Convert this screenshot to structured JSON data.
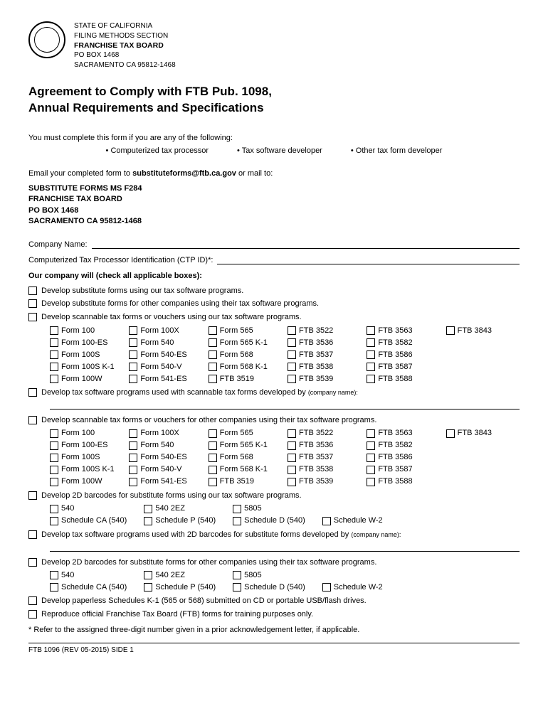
{
  "header": {
    "state": "STATE OF CALIFORNIA",
    "section": "FILING METHODS SECTION",
    "board": "FRANCHISE TAX BOARD",
    "pobox": "PO BOX 1468",
    "city": "SACRAMENTO  CA  95812-1468"
  },
  "title_l1": "Agreement to Comply with FTB Pub. 1098,",
  "title_l2": "Annual Requirements and Specifications",
  "intro": "You must complete this form if you are any of the following:",
  "bullet1": "Computerized tax processor",
  "bullet2": "Tax software developer",
  "bullet3": "Other tax form developer",
  "email_prefix": "Email your completed form to ",
  "email_addr": "substituteforms@ftb.ca.gov",
  "email_suffix": " or mail to:",
  "mailto": {
    "l1": "SUBSTITUTE FORMS  MS F284",
    "l2": "FRANCHISE TAX BOARD",
    "l3": "PO BOX 1468",
    "l4": "SACRAMENTO CA 95812-1468"
  },
  "field_company": "Company Name:",
  "field_ctp": "Computerized Tax Processor Identification (CTP ID)*:",
  "section_head": "Our company will (check all applicable boxes)",
  "colon": ":",
  "cb": {
    "c1": "Develop substitute forms using our tax software programs.",
    "c2": "Develop substitute forms for other companies using their tax software programs.",
    "c3": "Develop scannable tax forms or vouchers using our tax software programs.",
    "c4a": "Develop tax software programs used with scannable tax forms developed by ",
    "c4b": "(company name):",
    "c5": "Develop scannable tax forms or vouchers for other companies using their tax software programs.",
    "c6": "Develop 2D barcodes for substitute forms using our tax software programs.",
    "c7a": "Develop tax software programs used with 2D barcodes for substitute forms developed by ",
    "c7b": "(company name):",
    "c8": "Develop 2D barcodes for substitute forms for other companies using their tax software programs.",
    "c9": "Develop paperless Schedules K-1 (565 or 568) submitted on CD or portable USB/flash drives.",
    "c10": "Reproduce official Franchise Tax Board (FTB) forms for training purposes only."
  },
  "forms": {
    "r0": [
      "Form 100",
      "Form 100X",
      "Form 565",
      "FTB 3522",
      "FTB 3563",
      "FTB 3843"
    ],
    "r1": [
      "Form 100-ES",
      "Form 540",
      "Form 565 K-1",
      "FTB 3536",
      "FTB 3582",
      ""
    ],
    "r2": [
      "Form 100S",
      "Form 540-ES",
      "Form 568",
      "FTB 3537",
      "FTB 3586",
      ""
    ],
    "r3": [
      "Form 100S K-1",
      "Form 540-V",
      "Form 568 K-1",
      "FTB 3538",
      "FTB 3587",
      ""
    ],
    "r4": [
      "Form 100W",
      "Form 541-ES",
      "FTB 3519",
      "FTB 3539",
      "FTB 3588",
      ""
    ]
  },
  "barcodes": {
    "r0": [
      "540",
      "540 2EZ",
      "5805",
      "",
      ""
    ],
    "r1": [
      "Schedule CA (540)",
      "Schedule P (540)",
      "Schedule D (540)",
      "Schedule W-2",
      ""
    ]
  },
  "footnote": "* Refer to the assigned three-digit number given in a prior acknowledgement letter, if applicable.",
  "footer": "FTB 1096 (REV 05-2015) SIDE 1"
}
